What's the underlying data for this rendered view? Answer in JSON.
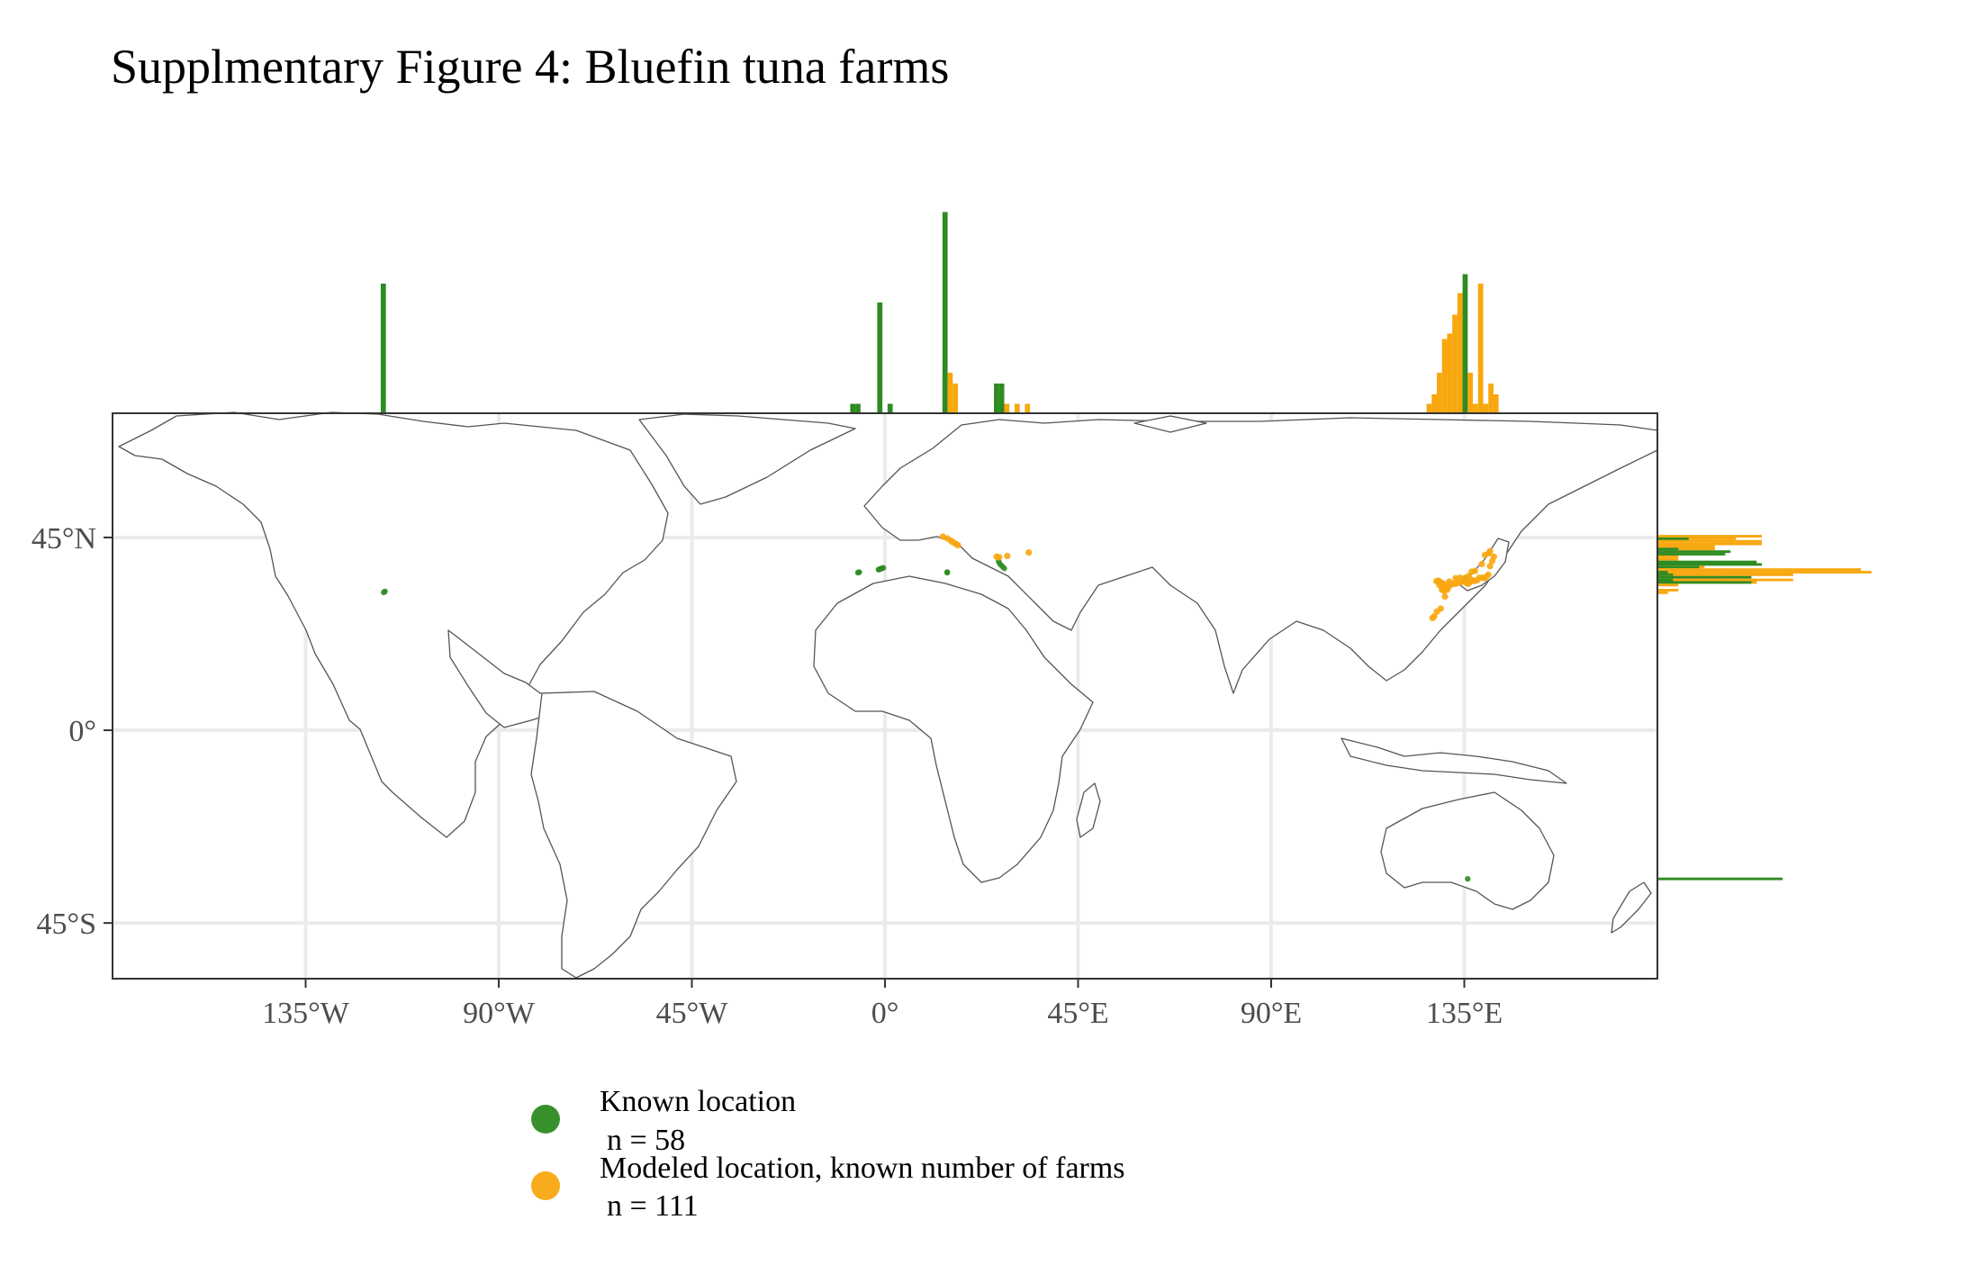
{
  "title": "Supplmentary Figure 4: Bluefin tuna farms",
  "colors": {
    "known": "#2e8b22",
    "modeled": "#f8a70f",
    "grid": "#ebebeb",
    "land_stroke": "#555555"
  },
  "map": {
    "projection": "equirectangular",
    "lon_range": [
      -180,
      180
    ],
    "lat_range": [
      -58,
      74
    ],
    "x_ticks": [
      {
        "value": -135,
        "label": "135°W"
      },
      {
        "value": -90,
        "label": "90°W"
      },
      {
        "value": -45,
        "label": "45°W"
      },
      {
        "value": 0,
        "label": "0°"
      },
      {
        "value": 45,
        "label": "45°E"
      },
      {
        "value": 90,
        "label": "90°E"
      },
      {
        "value": 135,
        "label": "135°E"
      }
    ],
    "y_ticks": [
      {
        "value": 45,
        "label": "45°N"
      },
      {
        "value": 0,
        "label": "0°"
      },
      {
        "value": -45,
        "label": "45°S"
      }
    ],
    "grid": true
  },
  "legend": {
    "items": [
      {
        "key": "known",
        "line1": "Known location",
        "line2": "n = 58"
      },
      {
        "key": "modeled",
        "line1": "Modeled location, known number of farms",
        "line2": "n = 111"
      }
    ]
  },
  "chart_data": {
    "type": "scatter",
    "series": [
      {
        "name": "Known location",
        "color": "#2e8b22",
        "points": [
          [
            -116.8,
            32.2
          ],
          [
            -116.5,
            32.4
          ],
          [
            -6.3,
            36.8
          ],
          [
            -6.0,
            36.9
          ],
          [
            -1.5,
            37.5
          ],
          [
            -1.2,
            37.6
          ],
          [
            -1.0,
            37.7
          ],
          [
            -0.7,
            37.8
          ],
          [
            -0.4,
            37.9
          ],
          [
            14.5,
            36.8
          ],
          [
            14.5,
            36.9
          ],
          [
            26.5,
            39.4
          ],
          [
            26.8,
            38.8
          ],
          [
            27.3,
            38.3
          ],
          [
            27.8,
            37.8
          ],
          [
            135.3,
            35.5
          ],
          [
            135.8,
            -34.7
          ]
        ]
      },
      {
        "name": "Modeled location, known number of farms",
        "color": "#f8a70f",
        "points": [
          [
            13.5,
            45.2
          ],
          [
            14.5,
            44.8
          ],
          [
            15.3,
            44.3
          ],
          [
            15.8,
            43.9
          ],
          [
            16.5,
            43.5
          ],
          [
            17.0,
            43.2
          ],
          [
            26.0,
            40.5
          ],
          [
            26.6,
            40.4
          ],
          [
            28.5,
            40.7
          ],
          [
            33.5,
            41.5
          ],
          [
            128.5,
            34.8
          ],
          [
            129.0,
            34.9
          ],
          [
            129.4,
            34.6
          ],
          [
            130.2,
            34.2
          ],
          [
            130.5,
            33.7
          ],
          [
            130.0,
            33.2
          ],
          [
            129.8,
            32.8
          ],
          [
            130.3,
            32.5
          ],
          [
            131.0,
            32.8
          ],
          [
            131.3,
            33.4
          ],
          [
            131.6,
            33.9
          ],
          [
            132.2,
            34.1
          ],
          [
            132.6,
            34.3
          ],
          [
            133.0,
            34.2
          ],
          [
            133.5,
            34.4
          ],
          [
            134.2,
            34.6
          ],
          [
            134.6,
            34.9
          ],
          [
            135.1,
            34.7
          ],
          [
            135.6,
            34.3
          ],
          [
            135.9,
            34.2
          ],
          [
            136.2,
            34.5
          ],
          [
            136.8,
            35.1
          ],
          [
            137.3,
            34.8
          ],
          [
            138.0,
            35.0
          ],
          [
            138.5,
            35.6
          ],
          [
            139.2,
            35.6
          ],
          [
            139.7,
            35.5
          ],
          [
            140.1,
            35.8
          ],
          [
            140.6,
            36.3
          ],
          [
            141.0,
            38.3
          ],
          [
            141.5,
            39.5
          ],
          [
            141.9,
            40.5
          ],
          [
            140.7,
            41.3
          ],
          [
            141.0,
            41.8
          ],
          [
            139.8,
            40.9
          ],
          [
            139.1,
            38.8
          ],
          [
            137.5,
            37.2
          ],
          [
            136.7,
            37.0
          ],
          [
            136.0,
            36.0
          ],
          [
            135.3,
            35.6
          ],
          [
            134.0,
            35.6
          ],
          [
            133.0,
            35.5
          ],
          [
            131.5,
            34.7
          ],
          [
            129.2,
            33.9
          ],
          [
            129.7,
            33.5
          ],
          [
            127.6,
            26.2
          ],
          [
            128.0,
            26.6
          ],
          [
            128.6,
            27.7
          ],
          [
            129.5,
            28.4
          ],
          [
            130.5,
            31.2
          ]
        ]
      }
    ],
    "marginal_x": {
      "type": "bar",
      "x_units": "longitude",
      "bins": [
        {
          "lon": -116.9,
          "known": 96,
          "modeled": 0
        },
        {
          "lon": -7.5,
          "known": 7,
          "modeled": 0
        },
        {
          "lon": -6.3,
          "known": 7,
          "modeled": 0
        },
        {
          "lon": -1.2,
          "known": 82,
          "modeled": 0
        },
        {
          "lon": 1.2,
          "known": 7,
          "modeled": 0
        },
        {
          "lon": 14.0,
          "known": 149,
          "modeled": 30
        },
        {
          "lon": 15.2,
          "known": 0,
          "modeled": 30
        },
        {
          "lon": 16.4,
          "known": 0,
          "modeled": 22
        },
        {
          "lon": 26.0,
          "known": 22,
          "modeled": 14
        },
        {
          "lon": 27.2,
          "known": 22,
          "modeled": 0
        },
        {
          "lon": 28.4,
          "known": 0,
          "modeled": 7
        },
        {
          "lon": 30.8,
          "known": 0,
          "modeled": 7
        },
        {
          "lon": 33.2,
          "known": 0,
          "modeled": 7
        },
        {
          "lon": 126.8,
          "known": 0,
          "modeled": 7
        },
        {
          "lon": 128.0,
          "known": 0,
          "modeled": 14
        },
        {
          "lon": 129.2,
          "known": 0,
          "modeled": 30
        },
        {
          "lon": 130.4,
          "known": 0,
          "modeled": 55
        },
        {
          "lon": 131.6,
          "known": 0,
          "modeled": 59
        },
        {
          "lon": 132.8,
          "known": 0,
          "modeled": 73
        },
        {
          "lon": 134.0,
          "known": 0,
          "modeled": 89
        },
        {
          "lon": 135.2,
          "known": 103,
          "modeled": 30
        },
        {
          "lon": 136.4,
          "known": 0,
          "modeled": 30
        },
        {
          "lon": 137.6,
          "known": 0,
          "modeled": 7
        },
        {
          "lon": 138.8,
          "known": 0,
          "modeled": 96
        },
        {
          "lon": 140.0,
          "known": 0,
          "modeled": 7
        },
        {
          "lon": 141.2,
          "known": 0,
          "modeled": 22
        },
        {
          "lon": 142.4,
          "known": 0,
          "modeled": 14
        }
      ]
    },
    "marginal_y": {
      "type": "bar",
      "y_units": "latitude",
      "bins": [
        {
          "lat": 45.3,
          "known": 0,
          "modeled": 20
        },
        {
          "lat": 44.7,
          "known": 6,
          "modeled": 15
        },
        {
          "lat": 44.1,
          "known": 0,
          "modeled": 20
        },
        {
          "lat": 43.5,
          "known": 0,
          "modeled": 20
        },
        {
          "lat": 42.9,
          "known": 0,
          "modeled": 11
        },
        {
          "lat": 42.3,
          "known": 4,
          "modeled": 11
        },
        {
          "lat": 41.7,
          "known": 14,
          "modeled": 0
        },
        {
          "lat": 41.1,
          "known": 13,
          "modeled": 0
        },
        {
          "lat": 40.5,
          "known": 0,
          "modeled": 4
        },
        {
          "lat": 39.9,
          "known": 0,
          "modeled": 4
        },
        {
          "lat": 39.3,
          "known": 19,
          "modeled": 0
        },
        {
          "lat": 38.7,
          "known": 20,
          "modeled": 0
        },
        {
          "lat": 38.1,
          "known": 8,
          "modeled": 9
        },
        {
          "lat": 37.5,
          "known": 0,
          "modeled": 39
        },
        {
          "lat": 36.9,
          "known": 2,
          "modeled": 41
        },
        {
          "lat": 36.3,
          "known": 3,
          "modeled": 26
        },
        {
          "lat": 35.7,
          "known": 18,
          "modeled": 13
        },
        {
          "lat": 35.1,
          "known": 3,
          "modeled": 26
        },
        {
          "lat": 34.5,
          "known": 18,
          "modeled": 19
        },
        {
          "lat": 33.9,
          "known": 0,
          "modeled": 4
        },
        {
          "lat": 32.7,
          "known": 0,
          "modeled": 4
        },
        {
          "lat": 32.1,
          "known": 0,
          "modeled": 2
        },
        {
          "lat": -34.7,
          "known": 24,
          "modeled": 0
        }
      ]
    }
  }
}
